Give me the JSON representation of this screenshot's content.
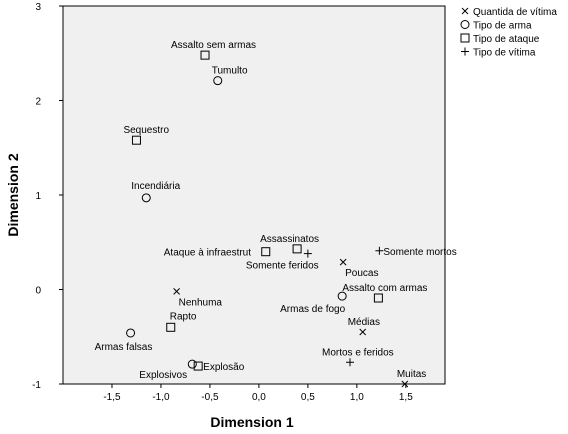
{
  "chart_data": {
    "type": "scatter",
    "xlabel": "Dimension 1",
    "ylabel": "Dimension 2",
    "xlim": [
      -2.0,
      1.9
    ],
    "ylim": [
      -1.0,
      3.0
    ],
    "x_ticks": [
      "-1,5",
      "-1,0",
      "-0,5",
      "0,0",
      "0,5",
      "1,0",
      "1,5"
    ],
    "x_tick_values": [
      -1.5,
      -1.0,
      -0.5,
      0.0,
      0.5,
      1.0,
      1.5
    ],
    "y_ticks": [
      "3",
      "2",
      "1",
      "0",
      "-1"
    ],
    "y_tick_values": [
      3,
      2,
      1,
      0,
      -1
    ],
    "grid": false,
    "legend_position": "top-right",
    "colors": {
      "plot_background": "#f0f0f0",
      "marker": "#000000"
    },
    "series": [
      {
        "name": "Quantida de vítima",
        "marker": "x",
        "points": [
          {
            "label": "Nenhuma",
            "x": -0.84,
            "y": -0.02
          },
          {
            "label": "Poucas",
            "x": 0.86,
            "y": 0.29
          },
          {
            "label": "Médias",
            "x": 1.06,
            "y": -0.45
          },
          {
            "label": "Muitas",
            "x": 1.49,
            "y": -1.0
          }
        ]
      },
      {
        "name": "Tipo de arma",
        "marker": "circle",
        "points": [
          {
            "label": "Tumulto",
            "x": -0.42,
            "y": 2.21
          },
          {
            "label": "Incendiária",
            "x": -1.15,
            "y": 0.97
          },
          {
            "label": "Armas de fogo",
            "x": 0.85,
            "y": -0.07
          },
          {
            "label": "Armas falsas",
            "x": -1.31,
            "y": -0.46
          },
          {
            "label": "Explosivos",
            "x": -0.68,
            "y": -0.79
          }
        ]
      },
      {
        "name": "Tipo de ataque",
        "marker": "square",
        "points": [
          {
            "label": "Assalto sem armas",
            "x": -0.55,
            "y": 2.48
          },
          {
            "label": "Sequestro",
            "x": -1.25,
            "y": 1.58
          },
          {
            "label": "Ataque à infraestrut",
            "x": 0.07,
            "y": 0.4
          },
          {
            "label": "Assassinatos",
            "x": 0.39,
            "y": 0.43
          },
          {
            "label": "Assalto com armas",
            "x": 1.22,
            "y": -0.09
          },
          {
            "label": "Rapto",
            "x": -0.9,
            "y": -0.4
          },
          {
            "label": "Explosão",
            "x": -0.62,
            "y": -0.81
          }
        ]
      },
      {
        "name": "Tipo de vítima",
        "marker": "plus",
        "points": [
          {
            "label": "Somente feridos",
            "x": 0.5,
            "y": 0.38
          },
          {
            "label": "Somente mortos",
            "x": 1.23,
            "y": 0.41
          },
          {
            "label": "Mortos e feridos",
            "x": 0.93,
            "y": -0.77
          }
        ]
      }
    ]
  }
}
